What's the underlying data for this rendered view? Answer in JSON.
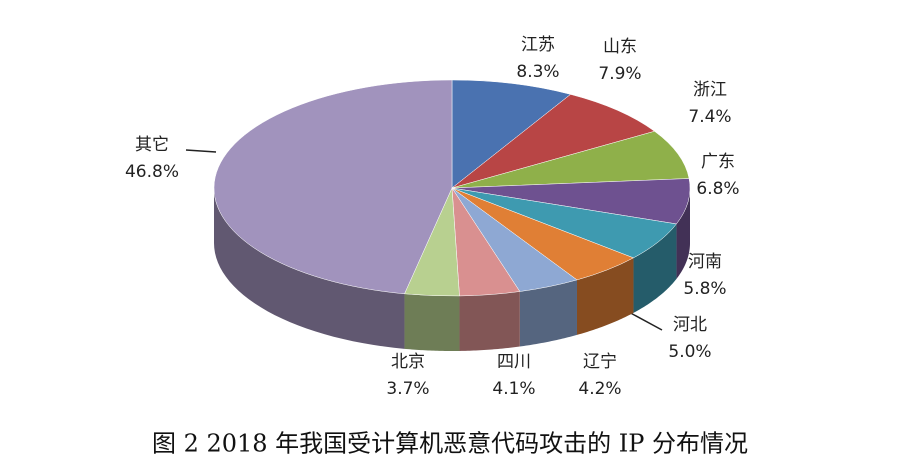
{
  "chart_data": {
    "type": "pie",
    "title": "图 2 2018 年我国受计算机恶意代码攻击的 IP 分布情况",
    "categories": [
      "江苏",
      "山东",
      "浙江",
      "广东",
      "河南",
      "河北",
      "辽宁",
      "四川",
      "北京",
      "其它"
    ],
    "values": [
      8.3,
      7.9,
      7.4,
      6.8,
      5.8,
      5.0,
      4.2,
      4.1,
      3.7,
      46.8
    ],
    "value_labels": [
      "8.3%",
      "7.9%",
      "7.4%",
      "6.8%",
      "5.8%",
      "5.0%",
      "4.2%",
      "4.1%",
      "3.7%",
      "46.8%"
    ],
    "colors": [
      "#4a72b0",
      "#b84545",
      "#8fb04a",
      "#6e5190",
      "#3e9ab0",
      "#e07f35",
      "#8ea8d3",
      "#d99090",
      "#b8d090",
      "#a193bd"
    ]
  }
}
